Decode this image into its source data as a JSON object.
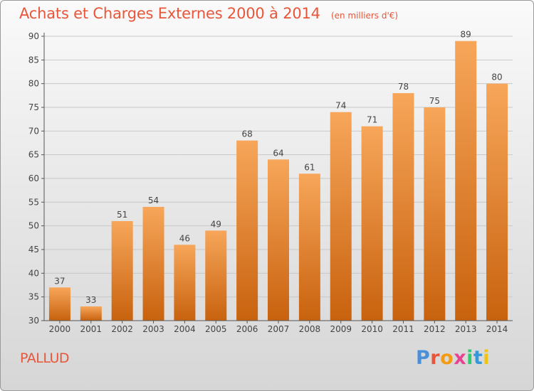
{
  "header": {
    "title": "Achats et Charges Externes 2000 à 2014",
    "unit": "(en milliers d'€)"
  },
  "footer": {
    "commune": "PALLUD"
  },
  "logo": {
    "text": "Proxiti",
    "colors": [
      "#4a90d9",
      "#e8563a",
      "#f39c12",
      "#e84393",
      "#2ecc71",
      "#3498db",
      "#f1c40f"
    ]
  },
  "colors": {
    "bar_top": "#f7a65a",
    "bar_bottom": "#c8620e",
    "text_accent": "#e8563a",
    "grid": "#c8c8c8"
  },
  "chart_data": {
    "type": "bar",
    "title": "Achats et Charges Externes 2000 à 2014",
    "subtitle": "(en milliers d'€)",
    "xlabel": "",
    "ylabel": "",
    "categories": [
      "2000",
      "2001",
      "2002",
      "2003",
      "2004",
      "2005",
      "2006",
      "2007",
      "2008",
      "2009",
      "2010",
      "2011",
      "2012",
      "2013",
      "2014"
    ],
    "values": [
      37,
      33,
      51,
      54,
      46,
      49,
      68,
      64,
      61,
      74,
      71,
      78,
      75,
      89,
      80
    ],
    "ylim": [
      30,
      90
    ],
    "yticks": [
      30,
      35,
      40,
      45,
      50,
      55,
      60,
      65,
      70,
      75,
      80,
      85,
      90
    ],
    "grid": true,
    "data_labels": true
  }
}
